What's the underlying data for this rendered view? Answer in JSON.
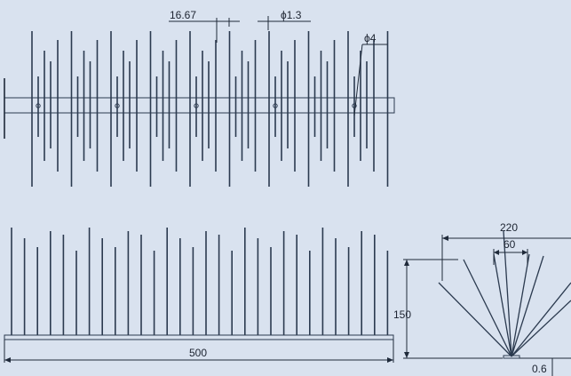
{
  "colors": {
    "background": "#d9e2ef",
    "spike": "#2b3a4f",
    "dimension_line": "#1f2a3a"
  },
  "top_view": {
    "spacing_label": "16.67",
    "wire_label": "ϕ1.3",
    "hole_label": "ϕ4"
  },
  "front_view": {
    "length_label": "500"
  },
  "side_view": {
    "width_label": "220",
    "inner_label": "60",
    "height_label": "150",
    "base_label": "0.6"
  }
}
